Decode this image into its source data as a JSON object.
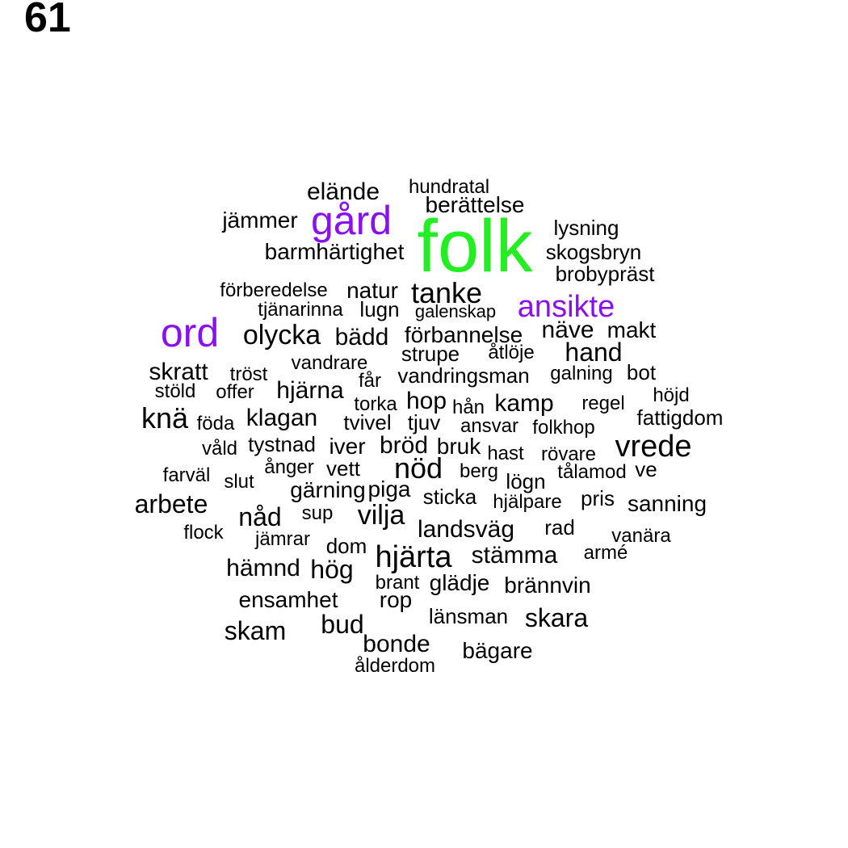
{
  "page_number": "61",
  "colors": {
    "green": "#22ee22",
    "purple": "#8b10f0",
    "black": "#000000"
  },
  "words": [
    {
      "text": "folk",
      "color": "green"
    },
    {
      "text": "gård",
      "color": "purple"
    },
    {
      "text": "ord",
      "color": "purple"
    },
    {
      "text": "ansikte",
      "color": "purple"
    },
    {
      "text": "elände",
      "color": "black"
    },
    {
      "text": "hundratal",
      "color": "black"
    },
    {
      "text": "berättelse",
      "color": "black"
    },
    {
      "text": "jämmer",
      "color": "black"
    },
    {
      "text": "lysning",
      "color": "black"
    },
    {
      "text": "barmhärtighet",
      "color": "black"
    },
    {
      "text": "skogsbryn",
      "color": "black"
    },
    {
      "text": "brobypräst",
      "color": "black"
    },
    {
      "text": "förberedelse",
      "color": "black"
    },
    {
      "text": "natur",
      "color": "black"
    },
    {
      "text": "tanke",
      "color": "black"
    },
    {
      "text": "tjänarinna",
      "color": "black"
    },
    {
      "text": "lugn",
      "color": "black"
    },
    {
      "text": "galenskap",
      "color": "black"
    },
    {
      "text": "olycka",
      "color": "black"
    },
    {
      "text": "bädd",
      "color": "black"
    },
    {
      "text": "förbannelse",
      "color": "black"
    },
    {
      "text": "näve",
      "color": "black"
    },
    {
      "text": "makt",
      "color": "black"
    },
    {
      "text": "strupe",
      "color": "black"
    },
    {
      "text": "åtlöje",
      "color": "black"
    },
    {
      "text": "hand",
      "color": "black"
    },
    {
      "text": "vandrare",
      "color": "black"
    },
    {
      "text": "skratt",
      "color": "black"
    },
    {
      "text": "tröst",
      "color": "black"
    },
    {
      "text": "får",
      "color": "black"
    },
    {
      "text": "vandringsman",
      "color": "black"
    },
    {
      "text": "galning",
      "color": "black"
    },
    {
      "text": "bot",
      "color": "black"
    },
    {
      "text": "stöld",
      "color": "black"
    },
    {
      "text": "offer",
      "color": "black"
    },
    {
      "text": "hjärna",
      "color": "black"
    },
    {
      "text": "torka",
      "color": "black"
    },
    {
      "text": "hop",
      "color": "black"
    },
    {
      "text": "hån",
      "color": "black"
    },
    {
      "text": "kamp",
      "color": "black"
    },
    {
      "text": "regel",
      "color": "black"
    },
    {
      "text": "höjd",
      "color": "black"
    },
    {
      "text": "knä",
      "color": "black"
    },
    {
      "text": "föda",
      "color": "black"
    },
    {
      "text": "klagan",
      "color": "black"
    },
    {
      "text": "tvivel",
      "color": "black"
    },
    {
      "text": "tjuv",
      "color": "black"
    },
    {
      "text": "ansvar",
      "color": "black"
    },
    {
      "text": "folkhop",
      "color": "black"
    },
    {
      "text": "fattigdom",
      "color": "black"
    },
    {
      "text": "våld",
      "color": "black"
    },
    {
      "text": "tystnad",
      "color": "black"
    },
    {
      "text": "iver",
      "color": "black"
    },
    {
      "text": "bröd",
      "color": "black"
    },
    {
      "text": "bruk",
      "color": "black"
    },
    {
      "text": "hast",
      "color": "black"
    },
    {
      "text": "rövare",
      "color": "black"
    },
    {
      "text": "vrede",
      "color": "black"
    },
    {
      "text": "farväl",
      "color": "black"
    },
    {
      "text": "ånger",
      "color": "black"
    },
    {
      "text": "vett",
      "color": "black"
    },
    {
      "text": "nöd",
      "color": "black"
    },
    {
      "text": "berg",
      "color": "black"
    },
    {
      "text": "tålamod",
      "color": "black"
    },
    {
      "text": "ve",
      "color": "black"
    },
    {
      "text": "slut",
      "color": "black"
    },
    {
      "text": "gärning",
      "color": "black"
    },
    {
      "text": "piga",
      "color": "black"
    },
    {
      "text": "lögn",
      "color": "black"
    },
    {
      "text": "arbete",
      "color": "black"
    },
    {
      "text": "sticka",
      "color": "black"
    },
    {
      "text": "hjälpare",
      "color": "black"
    },
    {
      "text": "pris",
      "color": "black"
    },
    {
      "text": "sanning",
      "color": "black"
    },
    {
      "text": "nåd",
      "color": "black"
    },
    {
      "text": "sup",
      "color": "black"
    },
    {
      "text": "vilja",
      "color": "black"
    },
    {
      "text": "flock",
      "color": "black"
    },
    {
      "text": "landsväg",
      "color": "black"
    },
    {
      "text": "rad",
      "color": "black"
    },
    {
      "text": "jämrar",
      "color": "black"
    },
    {
      "text": "vanära",
      "color": "black"
    },
    {
      "text": "dom",
      "color": "black"
    },
    {
      "text": "hjärta",
      "color": "black"
    },
    {
      "text": "stämma",
      "color": "black"
    },
    {
      "text": "armé",
      "color": "black"
    },
    {
      "text": "hämnd",
      "color": "black"
    },
    {
      "text": "hög",
      "color": "black"
    },
    {
      "text": "brant",
      "color": "black"
    },
    {
      "text": "glädje",
      "color": "black"
    },
    {
      "text": "brännvin",
      "color": "black"
    },
    {
      "text": "ensamhet",
      "color": "black"
    },
    {
      "text": "rop",
      "color": "black"
    },
    {
      "text": "länsman",
      "color": "black"
    },
    {
      "text": "skara",
      "color": "black"
    },
    {
      "text": "skam",
      "color": "black"
    },
    {
      "text": "bud",
      "color": "black"
    },
    {
      "text": "bonde",
      "color": "black"
    },
    {
      "text": "bägare",
      "color": "black"
    },
    {
      "text": "ålderdom",
      "color": "black"
    }
  ]
}
